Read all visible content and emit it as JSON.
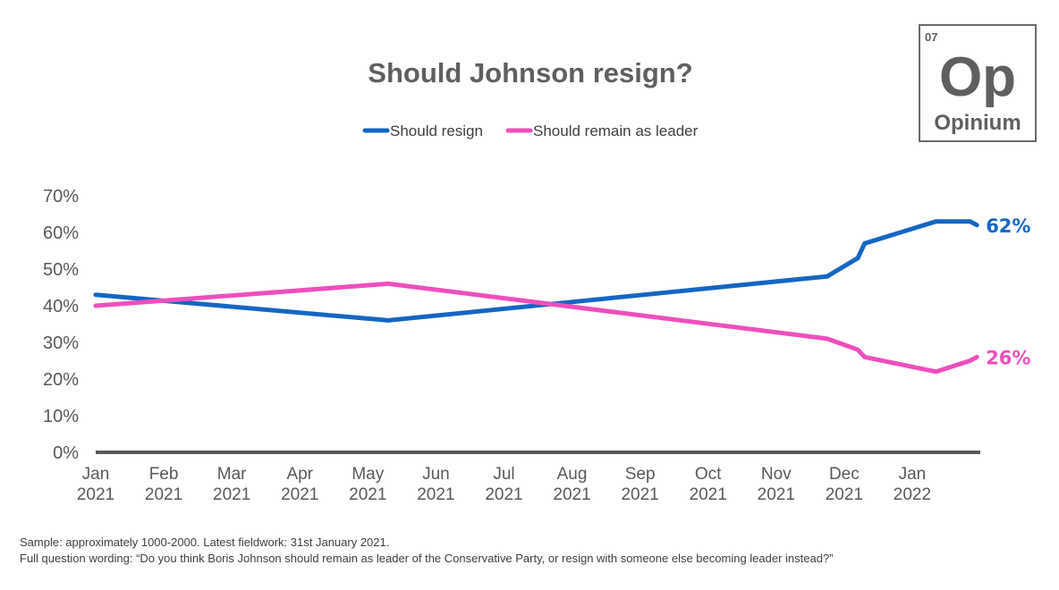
{
  "logo": {
    "number": "07",
    "symbol": "Op",
    "name": "Opinium"
  },
  "chart_data": {
    "type": "line",
    "title": "Should Johnson resign?",
    "xlabel": "",
    "ylabel": "",
    "ylim": [
      0,
      70
    ],
    "yticks": [
      "0%",
      "10%",
      "20%",
      "30%",
      "40%",
      "50%",
      "60%",
      "70%"
    ],
    "categories": [
      [
        "Jan",
        "2021"
      ],
      [
        "Feb",
        "2021"
      ],
      [
        "Mar",
        "2021"
      ],
      [
        "Apr",
        "2021"
      ],
      [
        "May",
        "2021"
      ],
      [
        "Jun",
        "2021"
      ],
      [
        "Jul",
        "2021"
      ],
      [
        "Aug",
        "2021"
      ],
      [
        "Sep",
        "2021"
      ],
      [
        "Oct",
        "2021"
      ],
      [
        "Nov",
        "2021"
      ],
      [
        "Dec",
        "2021"
      ],
      [
        "Jan",
        "2022"
      ]
    ],
    "grid": false,
    "legend_position": "top-center",
    "series": [
      {
        "name": "Should resign",
        "color": "#1466c4",
        "end_label": "62%",
        "points": [
          [
            0,
            43
          ],
          [
            4.3,
            36
          ],
          [
            10.75,
            48
          ],
          [
            11.2,
            53
          ],
          [
            11.3,
            57
          ],
          [
            12.35,
            63
          ],
          [
            12.85,
            63
          ],
          [
            12.95,
            62
          ]
        ]
      },
      {
        "name": "Should remain as leader",
        "color": "#ee4fbd",
        "end_label": "26%",
        "points": [
          [
            0,
            40
          ],
          [
            4.3,
            46
          ],
          [
            10.75,
            31
          ],
          [
            11.2,
            28
          ],
          [
            11.3,
            26
          ],
          [
            12.35,
            22
          ],
          [
            12.85,
            25
          ],
          [
            12.95,
            26
          ]
        ]
      }
    ]
  },
  "footnotes": [
    "Sample: approximately 1000-2000. Latest fieldwork: 31st January 2021.",
    "Full question wording: “Do you think Boris Johnson should remain as leader of the Conservative Party, or resign with someone else becoming leader instead?”"
  ]
}
